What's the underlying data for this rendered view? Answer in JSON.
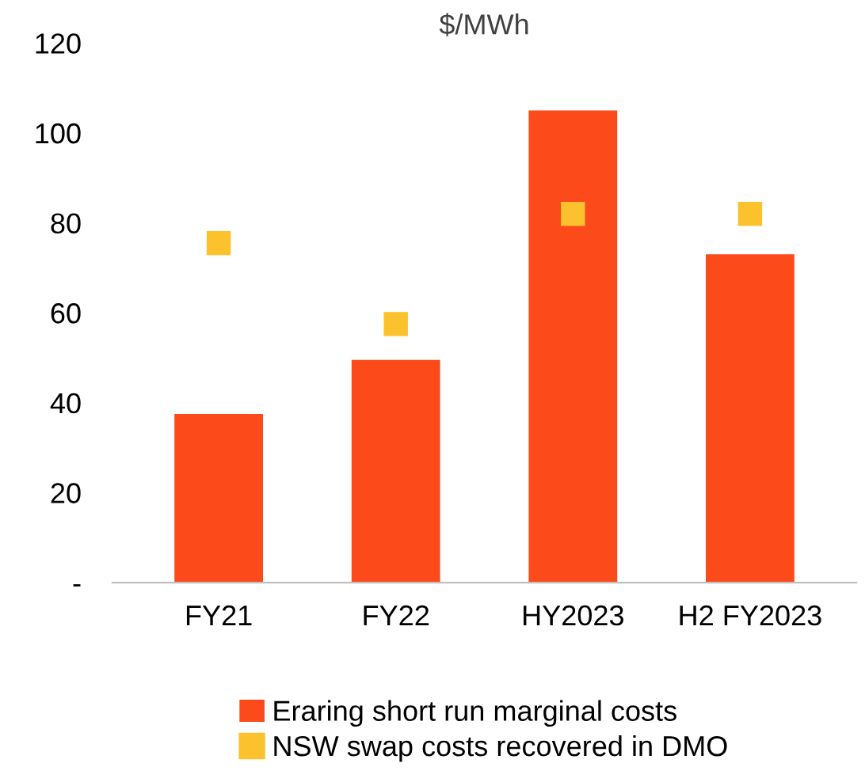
{
  "chart_data": {
    "type": "bar",
    "ylabel": "$/MWh",
    "categories": [
      "FY21",
      "FY22",
      "HY2023",
      "H2 FY2023"
    ],
    "series": [
      {
        "name": "Eraring short run marginal costs",
        "type": "bar",
        "color": "#fc4a1a",
        "values": [
          37.5,
          49.5,
          105,
          73
        ]
      },
      {
        "name": "NSW swap costs recovered in DMO",
        "type": "scatter",
        "marker": "square",
        "color": "#fcc22d",
        "x": [
          "FY21",
          "FY22",
          "HY2023",
          "H2 FY2023"
        ],
        "values": [
          75.5,
          57.5,
          82,
          82
        ]
      }
    ],
    "ylim": [
      0,
      120
    ],
    "yticks": [
      {
        "value": 0,
        "label": "-"
      },
      20,
      40,
      60,
      80,
      100,
      120
    ],
    "grid": false,
    "legend": "bottom"
  }
}
